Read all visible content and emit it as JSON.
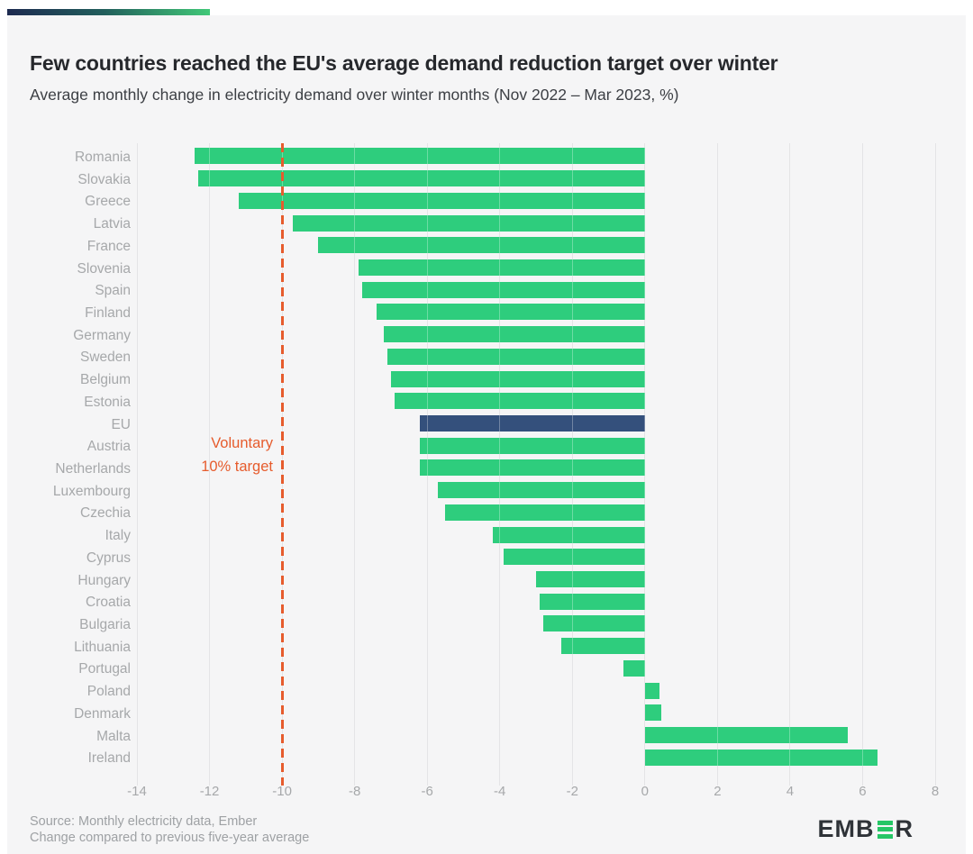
{
  "header": {
    "title": "Few countries reached the EU's average demand reduction target over winter",
    "subtitle": "Average monthly change in electricity demand over winter months (Nov 2022 – Mar 2023, %)"
  },
  "annotation": {
    "line1": "Voluntary",
    "line2": "10% target"
  },
  "footer": {
    "source_line1": "Source: Monthly electricity data, Ember",
    "source_line2": "Change compared to previous five-year average",
    "logo_prefix": "EMB",
    "logo_suffix": "R"
  },
  "colors": {
    "bar_green": "#2ecd7d",
    "bar_navy": "#34507c",
    "target_orange": "#e65c2d",
    "gridline": "#d8d9db",
    "label_gray": "#a6a8aa",
    "title_dark": "#26282c",
    "background": "#f5f5f6",
    "logo_green": "#26c666",
    "logo_dark": "#2f3338"
  },
  "chart_data": {
    "type": "bar",
    "orientation": "horizontal",
    "title": "Few countries reached the EU's average demand reduction target over winter",
    "subtitle": "Average monthly change in electricity demand over winter months (Nov 2022 – Mar 2023, %)",
    "xlabel": "",
    "ylabel": "",
    "xlim": [
      -14,
      8
    ],
    "x_ticks": [
      "-14",
      "-12",
      "-10",
      "-8",
      "-6",
      "-4",
      "-2",
      "0",
      "2",
      "4",
      "6",
      "8"
    ],
    "grid": "vertical",
    "legend": "none",
    "highlight_category": "EU",
    "categories": [
      "Romania",
      "Slovakia",
      "Greece",
      "Latvia",
      "France",
      "Slovenia",
      "Spain",
      "Finland",
      "Germany",
      "Sweden",
      "Belgium",
      "Estonia",
      "EU",
      "Austria",
      "Netherlands",
      "Luxembourg",
      "Czechia",
      "Italy",
      "Cyprus",
      "Hungary",
      "Croatia",
      "Bulgaria",
      "Lithuania",
      "Portugal",
      "Poland",
      "Denmark",
      "Malta",
      "Ireland"
    ],
    "values": [
      -12.4,
      -12.3,
      -11.2,
      -9.7,
      -9.0,
      -7.9,
      -7.8,
      -7.4,
      -7.2,
      -7.1,
      -7.0,
      -6.9,
      -6.2,
      -6.2,
      -6.2,
      -5.7,
      -5.5,
      -4.2,
      -3.9,
      -3.0,
      -2.9,
      -2.8,
      -2.3,
      -0.6,
      0.4,
      0.45,
      5.6,
      6.4
    ],
    "target_line": {
      "x": -10,
      "label": "Voluntary 10% target"
    }
  }
}
